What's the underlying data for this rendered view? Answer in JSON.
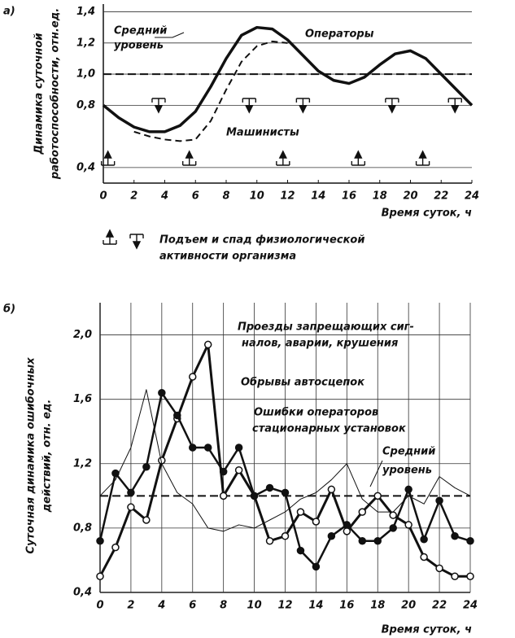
{
  "chart_data": [
    {
      "type": "line",
      "panel": "а)",
      "xlabel": "Время суток, ч",
      "ylabel": [
        "Динамика суточной",
        "работоспособности, отн.ед."
      ],
      "x": [
        0,
        1,
        2,
        3,
        4,
        5,
        6,
        7,
        8,
        9,
        10,
        11,
        12,
        13,
        14,
        15,
        16,
        17,
        18,
        19,
        20,
        21,
        22,
        23,
        24
      ],
      "xlim": [
        0,
        24
      ],
      "xticks": [
        0,
        2,
        4,
        6,
        8,
        10,
        12,
        14,
        16,
        18,
        20,
        22,
        24
      ],
      "ylim": [
        0.3,
        1.45
      ],
      "yticks": [
        {
          "value": 0.4,
          "label": "0,4"
        },
        {
          "value": 0.8,
          "label": "0,8"
        },
        {
          "value": 1,
          "label": "1,0"
        },
        {
          "value": 1.2,
          "label": "1,2"
        },
        {
          "value": 1.4,
          "label": "1,4"
        }
      ],
      "grid": "y",
      "reference_line": 1,
      "series": [
        {
          "name": [
            "Операторы"
          ],
          "color": "#111111",
          "width": 3.5,
          "dash": false,
          "values": [
            0.8,
            0.72,
            0.66,
            0.63,
            0.63,
            0.67,
            0.76,
            0.92,
            1.1,
            1.25,
            1.3,
            1.29,
            1.22,
            1.12,
            1.02,
            0.96,
            0.94,
            0.98,
            1.06,
            1.13,
            1.15,
            1.1,
            1.0,
            0.9,
            0.8
          ]
        },
        {
          "name": [
            "Машинисты"
          ],
          "color": "#111111",
          "width": 2,
          "dash": true,
          "values": [
            null,
            null,
            0.63,
            0.6,
            0.58,
            0.57,
            0.58,
            0.7,
            0.9,
            1.08,
            1.18,
            1.21,
            1.2,
            null,
            null,
            null,
            null,
            null,
            null,
            null,
            null,
            null,
            null,
            null,
            null
          ]
        }
      ],
      "annotations": [
        [
          "Средний",
          "уровень"
        ]
      ],
      "markers": {
        "label": [
          "Подъем и спад физиологической",
          "активности организма"
        ],
        "rise": [
          0.3,
          5.6,
          11.7,
          16.6,
          20.8
        ],
        "fall": [
          3.6,
          9.5,
          13,
          18.8,
          22.9
        ]
      }
    },
    {
      "type": "line",
      "panel": "б)",
      "xlabel": "Время суток, ч",
      "ylabel": [
        "Суточная динамика ошибочных",
        "действий, отн. ед."
      ],
      "x": [
        0,
        1,
        2,
        3,
        4,
        5,
        6,
        7,
        8,
        9,
        10,
        11,
        12,
        13,
        14,
        15,
        16,
        17,
        18,
        19,
        20,
        21,
        22,
        23,
        24
      ],
      "xlim": [
        0,
        24
      ],
      "xticks": [
        0,
        2,
        4,
        6,
        8,
        10,
        12,
        14,
        16,
        18,
        20,
        22,
        24
      ],
      "ylim": [
        0.4,
        2.2
      ],
      "yticks": [
        {
          "value": 0.4,
          "label": "0,4"
        },
        {
          "value": 0.8,
          "label": "0,8"
        },
        {
          "value": 1.2,
          "label": "1,2"
        },
        {
          "value": 1.6,
          "label": "1,6"
        },
        {
          "value": 2,
          "label": "2,0"
        }
      ],
      "grid": "both",
      "reference_line": 1,
      "series": [
        {
          "name": [
            "Проезды запрещающих сиг-",
            "налов, аварии, крушения"
          ],
          "color": "#111111",
          "width": 3,
          "dash": false,
          "marker": "open",
          "values": [
            0.5,
            0.68,
            0.93,
            0.85,
            1.22,
            1.48,
            1.74,
            1.94,
            1.0,
            1.16,
            1.0,
            0.72,
            0.75,
            0.9,
            0.84,
            1.04,
            0.78,
            0.9,
            1.0,
            0.88,
            0.82,
            0.62,
            0.55,
            0.5,
            0.5
          ]
        },
        {
          "name": [
            "Обрывы автосцепок"
          ],
          "color": "#111111",
          "width": 2.5,
          "dash": false,
          "marker": "filled",
          "values": [
            0.72,
            1.14,
            1.02,
            1.18,
            1.64,
            1.5,
            1.3,
            1.3,
            1.15,
            1.3,
            1.0,
            1.05,
            1.02,
            0.66,
            0.56,
            0.75,
            0.82,
            0.72,
            0.72,
            0.8,
            1.04,
            0.73,
            0.97,
            0.75,
            0.72
          ]
        },
        {
          "name": [
            "Ошибки операторов",
            "стационарных установок"
          ],
          "color": "#111111",
          "width": 1,
          "dash": false,
          "values": [
            1.0,
            1.1,
            1.3,
            1.66,
            1.2,
            1.02,
            0.95,
            0.8,
            0.78,
            0.82,
            0.8,
            0.85,
            0.9,
            0.98,
            1.02,
            1.1,
            1.2,
            0.98,
            0.9,
            0.9,
            1.0,
            0.95,
            1.12,
            1.05,
            1.0
          ]
        }
      ],
      "annotations": [
        [
          "Средний",
          "уровень"
        ]
      ]
    }
  ]
}
